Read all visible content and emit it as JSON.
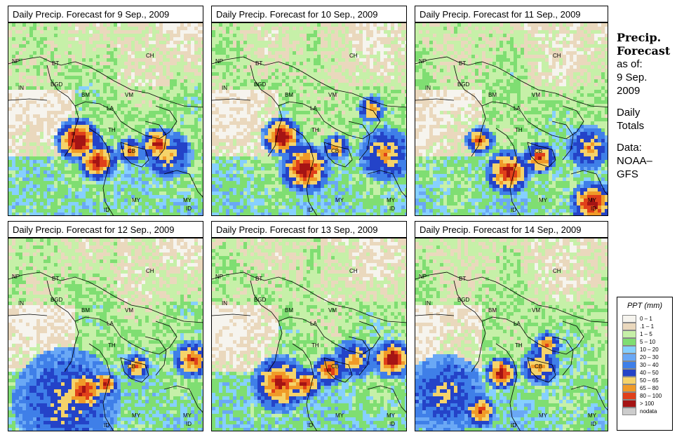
{
  "panels": [
    {
      "title": "Daily Precip. Forecast for  9 Sep., 2009"
    },
    {
      "title": "Daily Precip. Forecast for  10 Sep., 2009"
    },
    {
      "title": "Daily Precip. Forecast for  11 Sep., 2009"
    },
    {
      "title": "Daily Precip. Forecast for  12 Sep., 2009"
    },
    {
      "title": "Daily Precip. Forecast for  13 Sep., 2009"
    },
    {
      "title": "Daily Precip. Forecast for  14 Sep., 2009"
    }
  ],
  "country_labels": [
    "NP",
    "BT",
    "IN",
    "BGD",
    "CH",
    "BM",
    "VM",
    "LA",
    "TH",
    "CB",
    "MY",
    "ID"
  ],
  "sidebar": {
    "heading_line1": "Precip.",
    "heading_line2": "Forecast",
    "asof_line1": "as of:",
    "asof_line2": "9 Sep.",
    "asof_line3": "2009",
    "daily_line1": "Daily",
    "daily_line2": "Totals",
    "data_line1": "Data:",
    "data_line2": "NOAA–",
    "data_line3": "GFS"
  },
  "legend": {
    "title": "PPT (mm)",
    "bins": [
      {
        "label": "0 – 1",
        "color": "#f6f4ee"
      },
      {
        "label": ".1 – 1",
        "color": "#ead8bd"
      },
      {
        "label": "1 – 5",
        "color": "#c6f0a8"
      },
      {
        "label": "5 – 10",
        "color": "#7fde72"
      },
      {
        "label": "10 – 20",
        "color": "#86d0ff"
      },
      {
        "label": "20 – 30",
        "color": "#6aa8f5"
      },
      {
        "label": "30 – 40",
        "color": "#3f7fe8"
      },
      {
        "label": "40 – 50",
        "color": "#2443c8"
      },
      {
        "label": "50 – 65",
        "color": "#f5d36a"
      },
      {
        "label": "65 – 80",
        "color": "#f09a28"
      },
      {
        "label": "80 – 100",
        "color": "#e0401a"
      },
      {
        "label": "> 100",
        "color": "#a51414"
      },
      {
        "label": "nodata",
        "color": "#cccccc"
      }
    ]
  }
}
